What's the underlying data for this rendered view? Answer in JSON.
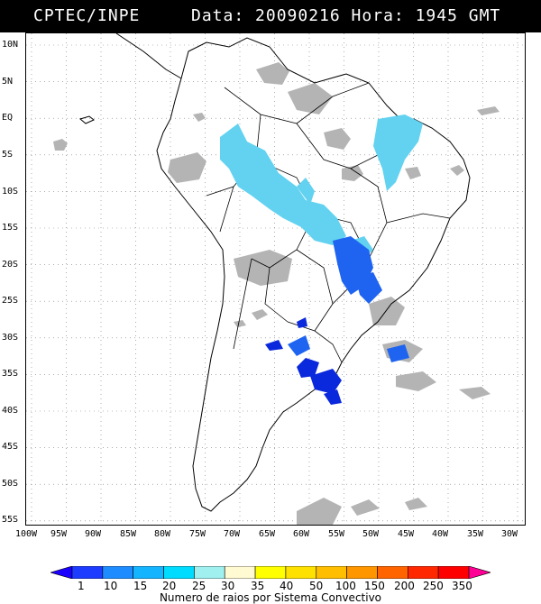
{
  "header": {
    "source": "CPTEC/INPE",
    "date_time": "Data: 20090216 Hora: 1945 GMT"
  },
  "map": {
    "lat_labels": [
      "10N",
      "5N",
      "EQ",
      "5S",
      "10S",
      "15S",
      "20S",
      "25S",
      "30S",
      "35S",
      "40S",
      "45S",
      "50S",
      "55S"
    ],
    "lon_labels": [
      "100W",
      "95W",
      "90W",
      "85W",
      "80W",
      "75W",
      "70W",
      "65W",
      "60W",
      "55W",
      "50W",
      "45W",
      "40W",
      "35W",
      "30W"
    ],
    "colors": {
      "land_outline": "#000000",
      "cloud_gray": "#b4b4b4",
      "light_blue": "#62d2f0",
      "mid_blue": "#1e64f0",
      "dark_blue": "#0a28dc",
      "grid": "#7a7a7a"
    }
  },
  "legend": {
    "title": "Numero de raios por Sistema Convectivo",
    "ticks": [
      "1",
      "10",
      "15",
      "20",
      "25",
      "30",
      "35",
      "40",
      "50",
      "100",
      "150",
      "200",
      "250",
      "350"
    ],
    "colors": [
      "#1b00ff",
      "#1e3cff",
      "#1e8cff",
      "#14b4ff",
      "#00dcff",
      "#a0f0f0",
      "#fffad2",
      "#ffff00",
      "#ffe100",
      "#ffbe00",
      "#ff9600",
      "#ff6400",
      "#ff2800",
      "#ff0000",
      "#ff0096"
    ]
  }
}
